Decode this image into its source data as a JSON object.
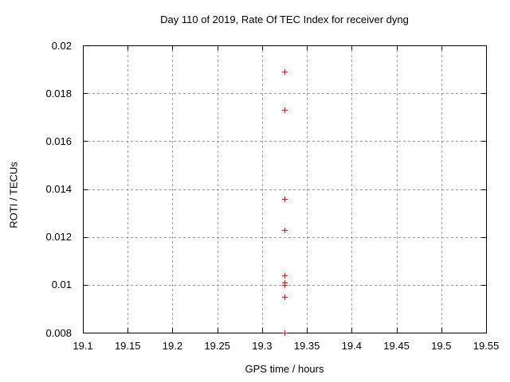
{
  "chart_data": {
    "type": "scatter",
    "title": "Day 110 of 2019, Rate Of TEC Index for receiver dyng",
    "xlabel": "GPS time / hours",
    "ylabel": "ROTI / TECUs",
    "xlim": [
      19.1,
      19.55
    ],
    "ylim": [
      0.008,
      0.02
    ],
    "xticks": [
      {
        "value": 19.1,
        "label": "19.1"
      },
      {
        "value": 19.15,
        "label": "19.15"
      },
      {
        "value": 19.2,
        "label": "19.2"
      },
      {
        "value": 19.25,
        "label": "19.25"
      },
      {
        "value": 19.3,
        "label": "19.3"
      },
      {
        "value": 19.35,
        "label": "19.35"
      },
      {
        "value": 19.4,
        "label": "19.4"
      },
      {
        "value": 19.45,
        "label": "19.45"
      },
      {
        "value": 19.5,
        "label": "19.5"
      },
      {
        "value": 19.55,
        "label": "19.55"
      }
    ],
    "yticks": [
      {
        "value": 0.008,
        "label": "0.008"
      },
      {
        "value": 0.01,
        "label": "0.01"
      },
      {
        "value": 0.012,
        "label": "0.012"
      },
      {
        "value": 0.014,
        "label": "0.014"
      },
      {
        "value": 0.016,
        "label": "0.016"
      },
      {
        "value": 0.018,
        "label": "0.018"
      },
      {
        "value": 0.02,
        "label": "0.02"
      }
    ],
    "grid": true,
    "legend": "none",
    "marker": "plus",
    "series": [
      {
        "name": "ROTI",
        "x": [
          19.325,
          19.325,
          19.325,
          19.325,
          19.325,
          19.325,
          19.325,
          19.325,
          19.325
        ],
        "y": [
          0.0189,
          0.0173,
          0.0136,
          0.0123,
          0.0104,
          0.0101,
          0.01,
          0.0095,
          0.008
        ]
      }
    ]
  },
  "colors": {
    "background": "#ffffff",
    "border": "#000000",
    "grid": "#999999",
    "marker": "#ff0000",
    "text": "#000000"
  }
}
